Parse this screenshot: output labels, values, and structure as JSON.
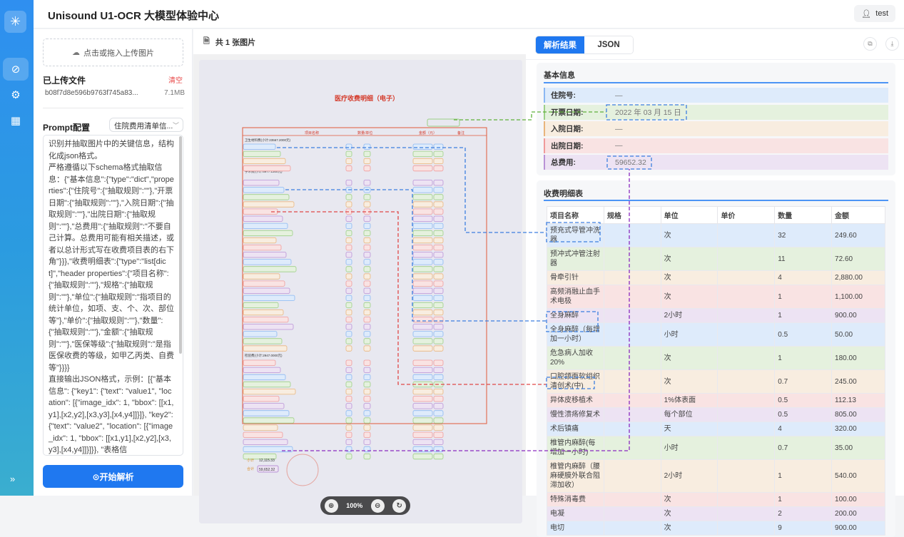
{
  "app": {
    "title": "Unisound U1-OCR 大模型体验中心",
    "user": "test"
  },
  "sidebar": {
    "items": [
      {
        "icon": "compass-icon",
        "active": true
      },
      {
        "icon": "gear-icon"
      },
      {
        "icon": "grid-icon"
      }
    ],
    "collapse_icon": "double-chevron-right"
  },
  "left": {
    "upload_label": "点击或拖入上传图片",
    "uploaded_title": "已上传文件",
    "clear_label": "清空",
    "file": {
      "name": "b08f7d8e596b9763f745a83...",
      "size": "7.1MB"
    },
    "prompt_title": "Prompt配置",
    "prompt_select": "住院费用清单信...",
    "prompt_text": "识别并抽取图片中的关键信息，结构化成json格式。\n严格遵循以下schema格式抽取信息：{\"基本信息\":{\"type\":\"dict\",\"properties\":{\"住院号\":{\"抽取规则\":\"\"},\"开票日期\":{\"抽取规则\":\"\"},\"入院日期\":{\"抽取规则\":\"\"},\"出院日期\":{\"抽取规则\":\"\"},\"总费用\":{\"抽取规则\":\"不要自己计算。总费用可能有相关描述，或者以总计形式写在收费项目表的右下角\"}}},\"收费明细表\":{\"type\":\"list[dict]\",\"header properties\":{\"项目名称\":{\"抽取规则\":\"\"},\"规格\":{\"抽取规则\":\"\"},\"单位\":{\"抽取规则\":\"指项目的统计单位，如项、支、个、次、部位等\"},\"单价\":{\"抽取规则\":\"\"},\"数量\":{\"抽取规则\":\"\"},\"金额\":{\"抽取规则\":\"\"},\"医保等级\":{\"抽取规则\":\"是指医保收费的等级，如甲乙丙类、自费等\"}}}}\n直接输出JSON格式，示例：[{\"基本信息\": {\"key1\": {\"text\": \"value1\", \"location\": [{\"image_idx\": 1, \"bbox\": [[x1,y1],[x2,y2],[x3,y3],[x4,y4]]}]}, \"key2\": {\"text\": \"value2\", \"location\": [{\"image_idx\": 1, \"bbox\": [[x1,y1],[x2,y2],[x3,y3],[x4,y4]]}]}}, \"表格信",
    "start_label": "⊙开始解析"
  },
  "middle": {
    "header": "共 1 张图片",
    "zoom": "100%",
    "document": {
      "title": "医疗收费明细（电子）",
      "columns": [
        "项目名称",
        "数量/单位",
        "金额（元）",
        "备注"
      ],
      "section1": "卫生材料费(小计:23567.2000元)",
      "section2": "手术费(小计:6977.1300元)",
      "section3": "检验费(小计:2947.0000元)",
      "subtotal_label": "小计",
      "subtotal": "12,115.33",
      "total_label": "合计",
      "total": "59,652.32"
    }
  },
  "right": {
    "tabs": [
      {
        "label": "解析结果",
        "active": true
      },
      {
        "label": "JSON"
      }
    ],
    "basic": {
      "title": "基本信息",
      "rows": [
        {
          "key": "住院号:",
          "value": "—"
        },
        {
          "key": "开票日期:",
          "value": "2022 年 03 月 15 日"
        },
        {
          "key": "入院日期:",
          "value": "—"
        },
        {
          "key": "出院日期:",
          "value": "—"
        },
        {
          "key": "总费用:",
          "value": "59652.32"
        }
      ]
    },
    "details": {
      "title": "收费明细表",
      "headers": [
        "项目名称",
        "规格",
        "单位",
        "单价",
        "数量",
        "金额"
      ],
      "rows": [
        [
          "预充式导管冲洗器",
          "",
          "次",
          "",
          "32",
          "249.60"
        ],
        [
          "预冲式冲管注射器",
          "",
          "次",
          "",
          "11",
          "72.60"
        ],
        [
          "骨牵引针",
          "",
          "次",
          "",
          "4",
          "2,880.00"
        ],
        [
          "高频消融止血手术电极",
          "",
          "次",
          "",
          "1",
          "1,100.00"
        ],
        [
          "全身麻醉",
          "",
          "2小时",
          "",
          "1",
          "900.00"
        ],
        [
          "全身麻醉（每增加一小时）",
          "",
          "小时",
          "",
          "0.5",
          "50.00"
        ],
        [
          "危急病人加收20%",
          "",
          "次",
          "",
          "1",
          "180.00"
        ],
        [
          "口腔颌面软组织清创术(中)",
          "",
          "次",
          "",
          "0.7",
          "245.00"
        ],
        [
          "异体皮移植术",
          "",
          "1%体表面",
          "",
          "0.5",
          "112.13"
        ],
        [
          "慢性溃疡修复术",
          "",
          "每个部位",
          "",
          "0.5",
          "805.00"
        ],
        [
          "术后镇痛",
          "",
          "天",
          "",
          "4",
          "320.00"
        ],
        [
          "椎管内麻醉(每增加一小时)",
          "",
          "小时",
          "",
          "0.7",
          "35.00"
        ],
        [
          "椎管内麻醉（腰麻硬膜外联合阻滞加收）",
          "",
          "2小时",
          "",
          "1",
          "540.00"
        ],
        [
          "特殊消毒费",
          "",
          "次",
          "",
          "1",
          "100.00"
        ],
        [
          "电凝",
          "",
          "次",
          "",
          "2",
          "200.00"
        ],
        [
          "电切",
          "",
          "次",
          "",
          "9",
          "900.00"
        ]
      ]
    }
  },
  "colors": {
    "accent": "#1f78f0",
    "row_bg": [
      "#deebfb",
      "#e5f1de",
      "#f8ede0",
      "#f9e3e3",
      "#ede3f3"
    ],
    "row_border": [
      "#8bb8f2",
      "#9ccf86",
      "#e9b57c",
      "#ef9a9a",
      "#b993d6"
    ]
  }
}
